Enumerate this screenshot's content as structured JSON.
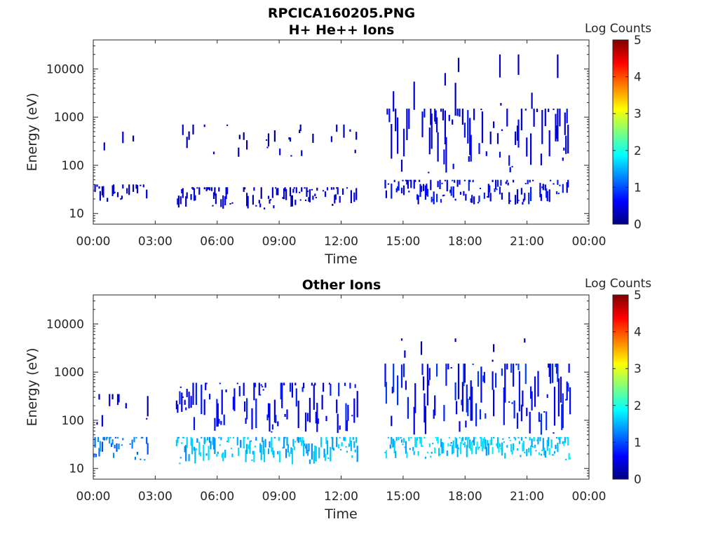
{
  "figure_title": "RPCICA160205.PNG",
  "colormap": [
    "#00007f",
    "#0000ff",
    "#007fff",
    "#00ffff",
    "#7fff7f",
    "#ffff00",
    "#ff7f00",
    "#ff0000",
    "#7f0000"
  ],
  "chart_data": [
    {
      "type": "heatmap",
      "title": "H+ He++ Ions",
      "xlabel": "Time",
      "ylabel": "Energy (eV)",
      "x_ticks": [
        "00:00",
        "03:00",
        "06:00",
        "09:00",
        "12:00",
        "15:00",
        "18:00",
        "21:00",
        "00:00"
      ],
      "x_range_hours": [
        0,
        24
      ],
      "y_scale": "log",
      "y_ticks": [
        "10",
        "100",
        "1000",
        "10000"
      ],
      "y_range_eV": [
        6,
        40000
      ],
      "colorbar_label": "Log Counts",
      "colorbar_ticks": [
        "0",
        "1",
        "2",
        "3",
        "4",
        "5"
      ],
      "colorbar_range": [
        0,
        5
      ],
      "data_intervals_hours": [
        [
          0.0,
          2.6
        ],
        [
          4.0,
          12.8
        ],
        [
          14.1,
          23.1
        ]
      ],
      "bands": [
        {
          "t": [
            0.0,
            2.6
          ],
          "e": [
            15,
            40
          ],
          "density": 0.35,
          "level": 0.3
        },
        {
          "t": [
            0.3,
            2.2
          ],
          "e": [
            150,
            500
          ],
          "density": 0.12,
          "level": 0.3
        },
        {
          "t": [
            4.0,
            12.8
          ],
          "e": [
            12,
            35
          ],
          "density": 0.55,
          "level": 0.4
        },
        {
          "t": [
            4.0,
            12.8
          ],
          "e": [
            150,
            700
          ],
          "density": 0.15,
          "level": 0.3
        },
        {
          "t": [
            14.1,
            23.1
          ],
          "e": [
            15,
            50
          ],
          "density": 0.6,
          "level": 0.6
        },
        {
          "t": [
            14.1,
            23.1
          ],
          "e": [
            70,
            1500
          ],
          "density": 0.35,
          "level": 0.5
        },
        {
          "t": [
            14.1,
            23.1
          ],
          "e": [
            1000,
            20000
          ],
          "density": 0.06,
          "level": 0.3
        }
      ]
    },
    {
      "type": "heatmap",
      "title": "Other Ions",
      "xlabel": "Time",
      "ylabel": "Energy (eV)",
      "x_ticks": [
        "00:00",
        "03:00",
        "06:00",
        "09:00",
        "12:00",
        "15:00",
        "18:00",
        "21:00",
        "00:00"
      ],
      "x_range_hours": [
        0,
        24
      ],
      "y_scale": "log",
      "y_ticks": [
        "10",
        "100",
        "1000",
        "10000"
      ],
      "y_range_eV": [
        6,
        40000
      ],
      "colorbar_label": "Log Counts",
      "colorbar_ticks": [
        "0",
        "1",
        "2",
        "3",
        "4",
        "5"
      ],
      "colorbar_range": [
        0,
        5
      ],
      "data_intervals_hours": [
        [
          0.0,
          2.6
        ],
        [
          4.0,
          12.8
        ],
        [
          14.1,
          23.1
        ]
      ],
      "bands": [
        {
          "t": [
            0.0,
            2.6
          ],
          "e": [
            15,
            45
          ],
          "density": 0.7,
          "level": 1.2
        },
        {
          "t": [
            0.0,
            2.6
          ],
          "e": [
            50,
            350
          ],
          "density": 0.15,
          "level": 0.4
        },
        {
          "t": [
            4.0,
            12.8
          ],
          "e": [
            12,
            45
          ],
          "density": 0.8,
          "level": 1.5
        },
        {
          "t": [
            4.0,
            12.8
          ],
          "e": [
            50,
            600
          ],
          "density": 0.45,
          "level": 0.6
        },
        {
          "t": [
            14.1,
            23.1
          ],
          "e": [
            15,
            45
          ],
          "density": 0.85,
          "level": 1.6
        },
        {
          "t": [
            14.1,
            23.1
          ],
          "e": [
            50,
            1500
          ],
          "density": 0.55,
          "level": 0.7
        },
        {
          "t": [
            14.1,
            23.1
          ],
          "e": [
            1500,
            5000
          ],
          "density": 0.04,
          "level": 0.3
        }
      ]
    }
  ]
}
